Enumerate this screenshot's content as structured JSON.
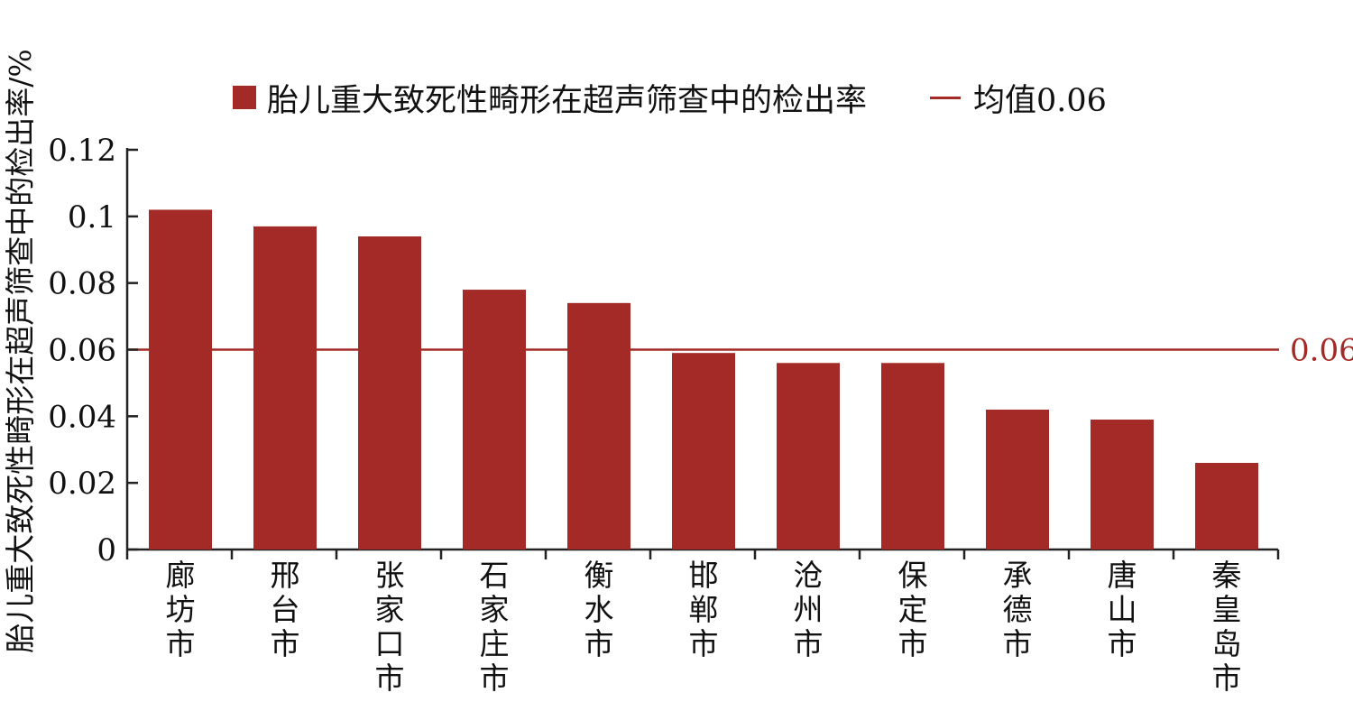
{
  "chart_data": {
    "type": "bar",
    "ylabel": "胎儿重大致死性畸形在超声筛查中的检出率/%",
    "xlabel": "",
    "ylim": [
      0,
      0.12
    ],
    "yticks": [
      "0",
      "0.02",
      "0.04",
      "0.06",
      "0.08",
      "0.1",
      "0.12"
    ],
    "ytick_values": [
      0,
      0.02,
      0.04,
      0.06,
      0.08,
      0.1,
      0.12
    ],
    "categories": [
      "廊坊市",
      "邢台市",
      "张家口市",
      "石家庄市",
      "衡水市",
      "邯郸市",
      "沧州市",
      "保定市",
      "承德市",
      "唐山市",
      "秦皇岛市"
    ],
    "series": [
      {
        "name": "胎儿重大致死性畸形在超声筛查中的检出率",
        "values": [
          0.102,
          0.097,
          0.094,
          0.078,
          0.074,
          0.059,
          0.056,
          0.056,
          0.042,
          0.039,
          0.026
        ]
      }
    ],
    "reference_line": {
      "name": "均值0.06",
      "value": 0.06,
      "label": "0.06"
    },
    "legend_position": "top",
    "grid": false,
    "colors": {
      "bar": "#a32a26",
      "line": "#a32a26",
      "axis": "#222222"
    }
  }
}
